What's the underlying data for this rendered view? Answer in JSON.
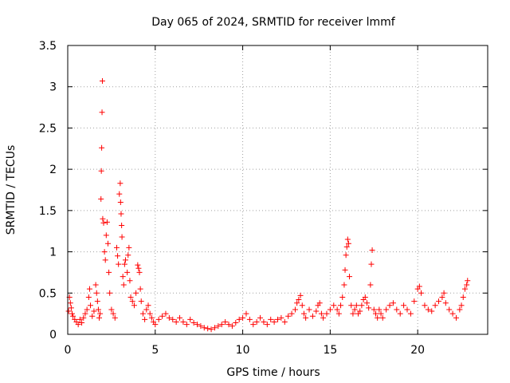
{
  "chart_data": {
    "type": "scatter",
    "title": "Day 065 of 2024, SRMTID for receiver lmmf",
    "xlabel": "GPS time / hours",
    "ylabel": "SRMTID / TECUs",
    "xlim": [
      0,
      24
    ],
    "ylim": [
      0,
      3.5
    ],
    "xticks": [
      0,
      5,
      10,
      15,
      20
    ],
    "xtick_labels": [
      "0",
      "5",
      "10",
      "15",
      "20"
    ],
    "yticks": [
      0,
      0.5,
      1,
      1.5,
      2,
      2.5,
      3,
      3.5
    ],
    "ytick_labels": [
      "0",
      "0.5",
      "1",
      "1.5",
      "2",
      "2.5",
      "3",
      "3.5"
    ],
    "grid": true,
    "marker": "+",
    "color": "#ff0000",
    "series": [
      {
        "name": "SRMTID",
        "points": [
          [
            0.05,
            0.28
          ],
          [
            0.1,
            0.45
          ],
          [
            0.15,
            0.38
          ],
          [
            0.2,
            0.32
          ],
          [
            0.25,
            0.25
          ],
          [
            0.3,
            0.22
          ],
          [
            0.4,
            0.18
          ],
          [
            0.5,
            0.15
          ],
          [
            0.6,
            0.12
          ],
          [
            0.7,
            0.18
          ],
          [
            0.8,
            0.14
          ],
          [
            0.9,
            0.2
          ],
          [
            1.0,
            0.25
          ],
          [
            1.1,
            0.3
          ],
          [
            1.2,
            0.45
          ],
          [
            1.25,
            0.55
          ],
          [
            1.3,
            0.35
          ],
          [
            1.4,
            0.22
          ],
          [
            1.5,
            0.28
          ],
          [
            1.6,
            0.6
          ],
          [
            1.65,
            0.5
          ],
          [
            1.7,
            0.4
          ],
          [
            1.75,
            0.3
          ],
          [
            1.8,
            0.2
          ],
          [
            1.85,
            0.25
          ],
          [
            1.9,
            1.64
          ],
          [
            1.92,
            1.98
          ],
          [
            1.94,
            2.26
          ],
          [
            1.96,
            2.69
          ],
          [
            1.98,
            3.07
          ],
          [
            2.0,
            1.4
          ],
          [
            2.05,
            1.35
          ],
          [
            2.1,
            1.0
          ],
          [
            2.15,
            0.9
          ],
          [
            2.2,
            1.2
          ],
          [
            2.25,
            1.36
          ],
          [
            2.3,
            1.1
          ],
          [
            2.35,
            0.75
          ],
          [
            2.4,
            0.5
          ],
          [
            2.5,
            0.3
          ],
          [
            2.6,
            0.25
          ],
          [
            2.7,
            0.2
          ],
          [
            2.8,
            1.05
          ],
          [
            2.85,
            0.95
          ],
          [
            2.9,
            0.85
          ],
          [
            2.95,
            1.7
          ],
          [
            3.0,
            1.83
          ],
          [
            3.02,
            1.6
          ],
          [
            3.05,
            1.46
          ],
          [
            3.08,
            1.32
          ],
          [
            3.1,
            1.18
          ],
          [
            3.15,
            0.7
          ],
          [
            3.2,
            0.6
          ],
          [
            3.25,
            0.85
          ],
          [
            3.3,
            0.9
          ],
          [
            3.4,
            0.75
          ],
          [
            3.45,
            0.96
          ],
          [
            3.5,
            1.05
          ],
          [
            3.55,
            0.65
          ],
          [
            3.6,
            0.45
          ],
          [
            3.7,
            0.4
          ],
          [
            3.8,
            0.35
          ],
          [
            3.9,
            0.5
          ],
          [
            4.0,
            0.84
          ],
          [
            4.05,
            0.8
          ],
          [
            4.1,
            0.75
          ],
          [
            4.15,
            0.55
          ],
          [
            4.2,
            0.4
          ],
          [
            4.3,
            0.25
          ],
          [
            4.4,
            0.18
          ],
          [
            4.5,
            0.3
          ],
          [
            4.6,
            0.35
          ],
          [
            4.7,
            0.25
          ],
          [
            4.8,
            0.2
          ],
          [
            4.9,
            0.15
          ],
          [
            5.0,
            0.12
          ],
          [
            5.2,
            0.18
          ],
          [
            5.4,
            0.22
          ],
          [
            5.6,
            0.25
          ],
          [
            5.8,
            0.2
          ],
          [
            6.0,
            0.18
          ],
          [
            6.2,
            0.15
          ],
          [
            6.4,
            0.2
          ],
          [
            6.6,
            0.15
          ],
          [
            6.8,
            0.12
          ],
          [
            7.0,
            0.18
          ],
          [
            7.2,
            0.14
          ],
          [
            7.4,
            0.12
          ],
          [
            7.6,
            0.1
          ],
          [
            7.8,
            0.08
          ],
          [
            8.0,
            0.07
          ],
          [
            8.2,
            0.06
          ],
          [
            8.4,
            0.08
          ],
          [
            8.6,
            0.1
          ],
          [
            8.8,
            0.12
          ],
          [
            9.0,
            0.15
          ],
          [
            9.2,
            0.12
          ],
          [
            9.4,
            0.1
          ],
          [
            9.6,
            0.14
          ],
          [
            9.8,
            0.18
          ],
          [
            10.0,
            0.2
          ],
          [
            10.2,
            0.25
          ],
          [
            10.4,
            0.18
          ],
          [
            10.6,
            0.12
          ],
          [
            10.8,
            0.15
          ],
          [
            11.0,
            0.2
          ],
          [
            11.2,
            0.15
          ],
          [
            11.4,
            0.12
          ],
          [
            11.6,
            0.18
          ],
          [
            11.8,
            0.15
          ],
          [
            12.0,
            0.18
          ],
          [
            12.2,
            0.2
          ],
          [
            12.4,
            0.15
          ],
          [
            12.6,
            0.22
          ],
          [
            12.8,
            0.25
          ],
          [
            13.0,
            0.3
          ],
          [
            13.1,
            0.38
          ],
          [
            13.2,
            0.42
          ],
          [
            13.3,
            0.47
          ],
          [
            13.4,
            0.35
          ],
          [
            13.5,
            0.25
          ],
          [
            13.6,
            0.2
          ],
          [
            13.8,
            0.3
          ],
          [
            14.0,
            0.22
          ],
          [
            14.2,
            0.28
          ],
          [
            14.3,
            0.35
          ],
          [
            14.4,
            0.38
          ],
          [
            14.5,
            0.25
          ],
          [
            14.6,
            0.2
          ],
          [
            14.8,
            0.25
          ],
          [
            15.0,
            0.3
          ],
          [
            15.2,
            0.35
          ],
          [
            15.4,
            0.3
          ],
          [
            15.5,
            0.25
          ],
          [
            15.6,
            0.35
          ],
          [
            15.7,
            0.45
          ],
          [
            15.8,
            0.6
          ],
          [
            15.85,
            0.78
          ],
          [
            15.9,
            0.96
          ],
          [
            15.95,
            1.06
          ],
          [
            16.0,
            1.15
          ],
          [
            16.05,
            1.1
          ],
          [
            16.1,
            0.7
          ],
          [
            16.2,
            0.35
          ],
          [
            16.3,
            0.25
          ],
          [
            16.4,
            0.3
          ],
          [
            16.5,
            0.35
          ],
          [
            16.6,
            0.25
          ],
          [
            16.7,
            0.28
          ],
          [
            16.8,
            0.35
          ],
          [
            16.9,
            0.42
          ],
          [
            17.0,
            0.45
          ],
          [
            17.1,
            0.38
          ],
          [
            17.2,
            0.32
          ],
          [
            17.3,
            0.6
          ],
          [
            17.35,
            0.85
          ],
          [
            17.4,
            1.02
          ],
          [
            17.5,
            0.3
          ],
          [
            17.6,
            0.25
          ],
          [
            17.7,
            0.2
          ],
          [
            17.8,
            0.3
          ],
          [
            17.9,
            0.25
          ],
          [
            18.0,
            0.2
          ],
          [
            18.2,
            0.3
          ],
          [
            18.4,
            0.35
          ],
          [
            18.6,
            0.38
          ],
          [
            18.8,
            0.3
          ],
          [
            19.0,
            0.25
          ],
          [
            19.2,
            0.35
          ],
          [
            19.4,
            0.3
          ],
          [
            19.6,
            0.25
          ],
          [
            19.8,
            0.4
          ],
          [
            20.0,
            0.55
          ],
          [
            20.1,
            0.58
          ],
          [
            20.2,
            0.5
          ],
          [
            20.4,
            0.35
          ],
          [
            20.6,
            0.3
          ],
          [
            20.8,
            0.28
          ],
          [
            21.0,
            0.35
          ],
          [
            21.2,
            0.4
          ],
          [
            21.4,
            0.45
          ],
          [
            21.5,
            0.5
          ],
          [
            21.6,
            0.38
          ],
          [
            21.8,
            0.3
          ],
          [
            22.0,
            0.25
          ],
          [
            22.2,
            0.2
          ],
          [
            22.4,
            0.3
          ],
          [
            22.5,
            0.35
          ],
          [
            22.6,
            0.45
          ],
          [
            22.7,
            0.55
          ],
          [
            22.8,
            0.6
          ],
          [
            22.85,
            0.65
          ]
        ]
      }
    ]
  }
}
